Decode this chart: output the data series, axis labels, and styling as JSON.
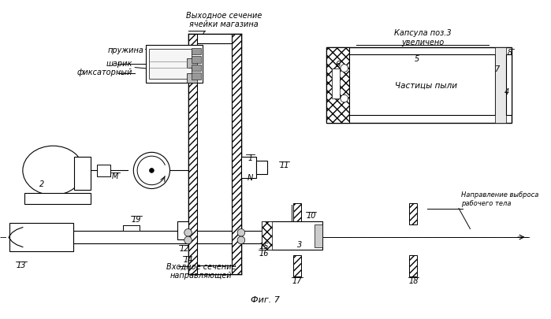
{
  "bg_color": "#ffffff",
  "fig_width": 6.99,
  "fig_height": 4.06,
  "dpi": 100,
  "labels": {
    "pruzhina": "пружина",
    "sharik": "шарик\nфиксаторный",
    "vykhodnoe": "Выходное сечение\nячейки магазина",
    "vkhodnoe": "Входное сечение\nнаправляющей",
    "kapsula": "Капсула поз.3\nувеличено",
    "chastitsy": "Частицы пыли",
    "napravlenie": "Направление выброса\nрабочего тела",
    "fig": "Фиг. 7"
  }
}
